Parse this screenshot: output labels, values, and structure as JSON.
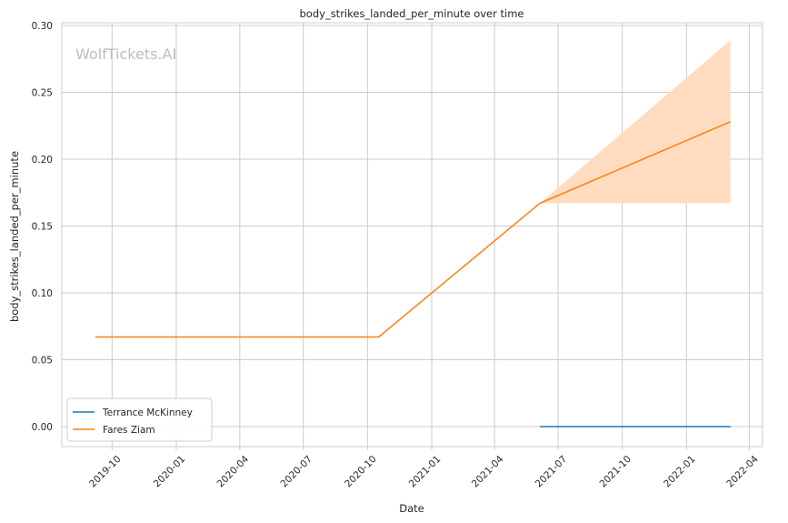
{
  "chart_data": {
    "type": "line",
    "title": "body_strikes_landed_per_minute over time",
    "xlabel": "Date",
    "ylabel": "body_strikes_landed_per_minute",
    "watermark": "WolfTickets.AI",
    "xlim": [
      "2019-07-21",
      "2022-04-20"
    ],
    "ylim": [
      -0.015,
      0.302
    ],
    "x_ticks": [
      "2019-10",
      "2020-01",
      "2020-04",
      "2020-07",
      "2020-10",
      "2021-01",
      "2021-04",
      "2021-07",
      "2021-10",
      "2022-01",
      "2022-04"
    ],
    "y_ticks": [
      "0.00",
      "0.05",
      "0.10",
      "0.15",
      "0.20",
      "0.25",
      "0.30"
    ],
    "grid": true,
    "legend_position": "lower-left",
    "series": [
      {
        "name": "Terrance McKinney",
        "color": "#1f77b4",
        "points": [
          {
            "x": "2021-06-05",
            "y": 0.0
          },
          {
            "x": "2022-03-05",
            "y": 0.0
          }
        ]
      },
      {
        "name": "Fares Ziam",
        "color": "#ff7f0e",
        "band_color": "#ffdcbf",
        "points": [
          {
            "x": "2019-09-07",
            "y": 0.067
          },
          {
            "x": "2020-10-17",
            "y": 0.067
          },
          {
            "x": "2021-06-05",
            "y": 0.167
          },
          {
            "x": "2022-03-05",
            "y": 0.228
          }
        ],
        "band": [
          {
            "x": "2021-06-05",
            "lower": 0.167,
            "upper": 0.167
          },
          {
            "x": "2022-03-05",
            "lower": 0.167,
            "upper": 0.289
          }
        ]
      }
    ]
  }
}
